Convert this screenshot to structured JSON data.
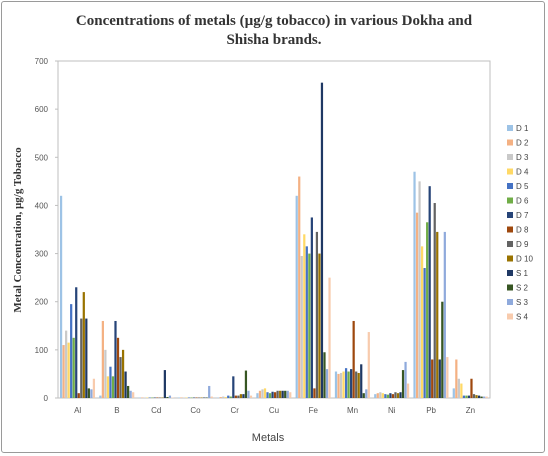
{
  "chart_data": {
    "type": "bar",
    "title": [
      "Concentrations of metals (µg/g tobacco) in various Dokha and",
      "Shisha brands."
    ],
    "xlabel": "Metals",
    "ylabel": "Metal Concentration, µg/g Tobacco",
    "ylim": [
      0,
      700
    ],
    "yticks": [
      0,
      100,
      200,
      300,
      400,
      500,
      600,
      700
    ],
    "grid": false,
    "legend_position": "right",
    "categories": [
      "Al",
      "B",
      "Cd",
      "Co",
      "Cr",
      "Cu",
      "Fe",
      "Mn",
      "Ni",
      "Pb",
      "Zn"
    ],
    "series": [
      {
        "name": "D 1",
        "color": "#9dc3e6",
        "values": [
          420,
          5,
          1,
          1,
          1,
          10,
          420,
          55,
          8,
          470,
          20
        ]
      },
      {
        "name": "D 2",
        "color": "#f4b183",
        "values": [
          110,
          160,
          1,
          1,
          2,
          15,
          460,
          50,
          10,
          385,
          80
        ]
      },
      {
        "name": "D 3",
        "color": "#c9c9c9",
        "values": [
          140,
          100,
          1,
          1,
          3,
          18,
          295,
          52,
          12,
          450,
          40
        ]
      },
      {
        "name": "D 4",
        "color": "#ffd966",
        "values": [
          115,
          45,
          1,
          1,
          2,
          20,
          340,
          55,
          10,
          315,
          30
        ]
      },
      {
        "name": "D 5",
        "color": "#4472c4",
        "values": [
          195,
          65,
          1,
          1,
          5,
          12,
          315,
          62,
          8,
          270,
          5
        ]
      },
      {
        "name": "D 6",
        "color": "#70ad47",
        "values": [
          125,
          45,
          1,
          1,
          3,
          10,
          300,
          55,
          7,
          365,
          5
        ]
      },
      {
        "name": "D 7",
        "color": "#264478",
        "values": [
          230,
          160,
          1,
          1,
          45,
          13,
          375,
          60,
          10,
          440,
          5
        ]
      },
      {
        "name": "D 8",
        "color": "#9e480e",
        "values": [
          10,
          125,
          1,
          1,
          5,
          12,
          20,
          160,
          8,
          80,
          40
        ]
      },
      {
        "name": "D 9",
        "color": "#636363",
        "values": [
          165,
          85,
          1,
          1,
          5,
          15,
          345,
          55,
          12,
          405,
          8
        ]
      },
      {
        "name": "D 10",
        "color": "#997300",
        "values": [
          220,
          100,
          1,
          1,
          8,
          15,
          300,
          52,
          10,
          345,
          6
        ]
      },
      {
        "name": "S 1",
        "color": "#1f3864",
        "values": [
          165,
          55,
          58,
          1,
          8,
          15,
          655,
          70,
          12,
          80,
          5
        ]
      },
      {
        "name": "S 2",
        "color": "#375623",
        "values": [
          20,
          25,
          2,
          1,
          57,
          15,
          95,
          10,
          58,
          200,
          3
        ]
      },
      {
        "name": "S 3",
        "color": "#8faadc",
        "values": [
          18,
          15,
          5,
          25,
          15,
          15,
          60,
          18,
          75,
          345,
          3
        ]
      },
      {
        "name": "S 4",
        "color": "#f8cbad",
        "values": [
          40,
          12,
          1,
          3,
          5,
          12,
          250,
          137,
          30,
          85,
          3
        ]
      }
    ]
  }
}
